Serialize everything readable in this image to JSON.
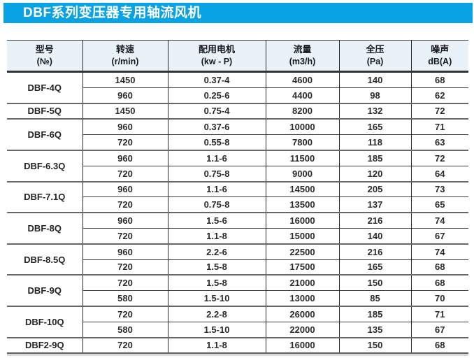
{
  "title": "DBF系列变压器专用轴流风机",
  "colors": {
    "banner_blue": "#09a2e4",
    "header_bg": "#e9f1f9",
    "grid_dark": "#24282c",
    "group_separator": "#63686d",
    "text": "#2b2b2b"
  },
  "table": {
    "columns": [
      {
        "id": "model",
        "line1": "型号",
        "line2": "(№)"
      },
      {
        "id": "speed",
        "line1": "转速",
        "line2": "(r/min)"
      },
      {
        "id": "motor",
        "line1": "配用电机",
        "line2": "(kw - P)"
      },
      {
        "id": "flow",
        "line1": "流量",
        "line2": "(m3/h)"
      },
      {
        "id": "pressure",
        "line1": "全压",
        "line2": "(Pa)"
      },
      {
        "id": "noise",
        "line1": "噪声",
        "line2": "dB(A)"
      }
    ],
    "groups": [
      {
        "model": "DBF-4Q",
        "rows": [
          [
            "1450",
            "0.37-4",
            "4600",
            "140",
            "68"
          ],
          [
            "960",
            "0.25-6",
            "4400",
            "98",
            "62"
          ]
        ]
      },
      {
        "model": "DBF-5Q",
        "rows": [
          [
            "1450",
            "0.75-4",
            "8200",
            "132",
            "72"
          ]
        ]
      },
      {
        "model": "DBF-6Q",
        "rows": [
          [
            "960",
            "0.37-6",
            "10000",
            "165",
            "71"
          ],
          [
            "720",
            "0.55-8",
            "7800",
            "118",
            "63"
          ]
        ]
      },
      {
        "model": "DBF-6.3Q",
        "rows": [
          [
            "960",
            "1.1-6",
            "11500",
            "185",
            "72"
          ],
          [
            "720",
            "0.75-8",
            "9000",
            "120",
            "64"
          ]
        ]
      },
      {
        "model": "DBF-7.1Q",
        "rows": [
          [
            "960",
            "1.1-6",
            "14500",
            "205",
            "73"
          ],
          [
            "720",
            "0.75-8",
            "13500",
            "137",
            "65"
          ]
        ]
      },
      {
        "model": "DBF-8Q",
        "rows": [
          [
            "960",
            "1.5-6",
            "16000",
            "216",
            "74"
          ],
          [
            "720",
            "1.1-8",
            "15000",
            "140",
            "67"
          ]
        ]
      },
      {
        "model": "DBF-8.5Q",
        "rows": [
          [
            "960",
            "2.2-6",
            "22500",
            "216",
            "74"
          ],
          [
            "720",
            "1.5-8",
            "17500",
            "165",
            "68"
          ]
        ]
      },
      {
        "model": "DBF-9Q",
        "rows": [
          [
            "720",
            "1.5-8",
            "21000",
            "150",
            "68"
          ],
          [
            "580",
            "1.5-10",
            "13000",
            "85",
            "70"
          ]
        ]
      },
      {
        "model": "DBF-10Q",
        "rows": [
          [
            "720",
            "2.2-8",
            "26000",
            "185",
            "71"
          ],
          [
            "580",
            "1.5-10",
            "22000",
            "135",
            "67"
          ]
        ]
      },
      {
        "model": "DBF2-9Q",
        "rows": [
          [
            "720",
            "1.1-8",
            "16000",
            "150",
            "68"
          ]
        ]
      }
    ]
  }
}
